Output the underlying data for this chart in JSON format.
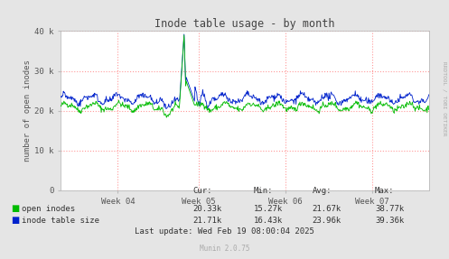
{
  "title": "Inode table usage - by month",
  "ylabel": "number of open inodes",
  "background_color": "#e5e5e5",
  "plot_bg_color": "#ffffff",
  "grid_color": "#ff9999",
  "ylim": [
    0,
    40000
  ],
  "yticks": [
    0,
    10000,
    20000,
    30000,
    40000
  ],
  "ytick_labels": [
    "0",
    "10 k",
    "20 k",
    "30 k",
    "40 k"
  ],
  "xtick_labels": [
    "Week 04",
    "Week 05",
    "Week 06",
    "Week 07"
  ],
  "line_color_green": "#00bb00",
  "line_color_blue": "#0022cc",
  "watermark": "RRDTOOL / TOBI OETIKER",
  "legend_entries": [
    "open inodes",
    "inode table size"
  ],
  "legend_colors": [
    "#00bb00",
    "#0022cc"
  ],
  "stats_header": [
    "Cur:",
    "Min:",
    "Avg:",
    "Max:"
  ],
  "stats_open_inodes": [
    "20.33k",
    "15.27k",
    "21.67k",
    "38.77k"
  ],
  "stats_inode_table": [
    "21.71k",
    "16.43k",
    "23.96k",
    "39.36k"
  ],
  "last_update": "Last update: Wed Feb 19 08:00:04 2025",
  "munin_version": "Munin 2.0.75",
  "num_points": 672
}
